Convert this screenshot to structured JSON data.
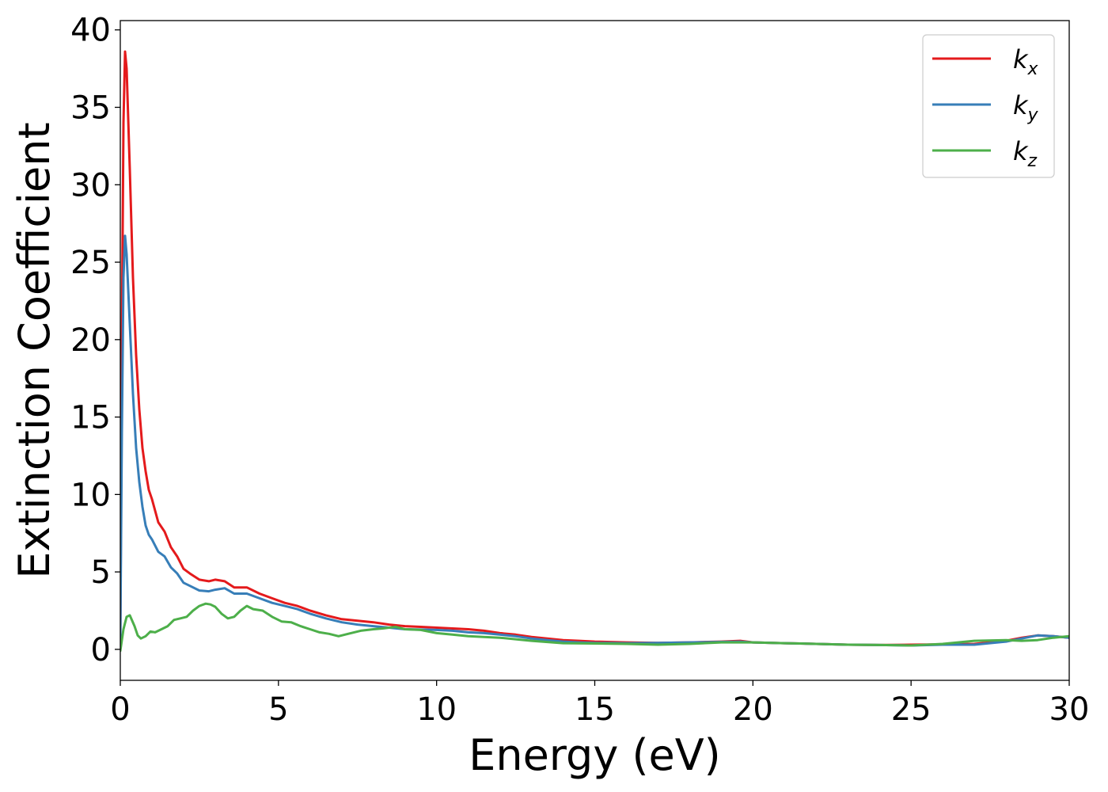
{
  "chart_data": {
    "type": "line",
    "title": "",
    "xlabel": "Energy (eV)",
    "ylabel": "Extinction Coefficient",
    "xlim": [
      0,
      30
    ],
    "ylim": [
      -2,
      40.6
    ],
    "xticks": [
      0,
      5,
      10,
      15,
      20,
      25,
      30
    ],
    "yticks": [
      0,
      5,
      10,
      15,
      20,
      25,
      30,
      35,
      40
    ],
    "grid": false,
    "legend_position": "top-right",
    "series": [
      {
        "name": "kx",
        "name_base": "k",
        "name_sub": "x",
        "color": "#e41a1c",
        "x": [
          0,
          0.05,
          0.1,
          0.15,
          0.2,
          0.3,
          0.4,
          0.5,
          0.6,
          0.7,
          0.8,
          0.9,
          1.0,
          1.2,
          1.4,
          1.6,
          1.8,
          2.0,
          2.2,
          2.5,
          2.8,
          3.0,
          3.3,
          3.6,
          4.0,
          4.4,
          4.8,
          5.2,
          5.6,
          6.0,
          6.5,
          7.0,
          7.5,
          8.0,
          8.5,
          9.0,
          9.5,
          10.0,
          10.5,
          11.0,
          11.5,
          12.0,
          12.5,
          13.0,
          13.5,
          14.0,
          14.5,
          15.0,
          16.0,
          17.0,
          18.0,
          19.0,
          19.6,
          20.0,
          21.0,
          22.0,
          23.0,
          24.0,
          25.0,
          26.0,
          27.0,
          28.0,
          28.5,
          29.0,
          29.5,
          30.0
        ],
        "values": [
          0.5,
          20,
          34,
          38.6,
          37.5,
          31,
          24,
          19,
          15.5,
          13,
          11.5,
          10.3,
          9.7,
          8.2,
          7.6,
          6.6,
          6.0,
          5.2,
          4.9,
          4.5,
          4.4,
          4.5,
          4.4,
          4.0,
          4.0,
          3.6,
          3.3,
          3.0,
          2.8,
          2.5,
          2.2,
          1.95,
          1.85,
          1.75,
          1.6,
          1.5,
          1.45,
          1.4,
          1.35,
          1.3,
          1.2,
          1.05,
          0.95,
          0.8,
          0.7,
          0.6,
          0.55,
          0.5,
          0.45,
          0.42,
          0.45,
          0.5,
          0.55,
          0.45,
          0.4,
          0.35,
          0.3,
          0.28,
          0.3,
          0.32,
          0.35,
          0.55,
          0.75,
          0.9,
          0.85,
          0.75
        ]
      },
      {
        "name": "ky",
        "name_base": "k",
        "name_sub": "y",
        "color": "#377eb8",
        "x": [
          0,
          0.05,
          0.1,
          0.15,
          0.2,
          0.3,
          0.4,
          0.5,
          0.6,
          0.7,
          0.8,
          0.9,
          1.0,
          1.2,
          1.4,
          1.6,
          1.8,
          2.0,
          2.2,
          2.5,
          2.8,
          3.0,
          3.3,
          3.6,
          4.0,
          4.4,
          4.8,
          5.2,
          5.6,
          6.0,
          6.5,
          7.0,
          7.5,
          8.0,
          8.5,
          9.0,
          9.5,
          10.0,
          10.5,
          11.0,
          11.5,
          12.0,
          12.5,
          13.0,
          13.5,
          14.0,
          14.5,
          15.0,
          16.0,
          17.0,
          18.0,
          19.0,
          19.6,
          20.0,
          21.0,
          22.0,
          23.0,
          24.0,
          25.0,
          26.0,
          27.0,
          28.0,
          28.5,
          29.0,
          29.5,
          30.0
        ],
        "values": [
          0.5,
          14,
          24,
          26.7,
          25.5,
          21,
          16.5,
          13,
          10.8,
          9.2,
          8.0,
          7.4,
          7.1,
          6.3,
          6.0,
          5.3,
          4.9,
          4.3,
          4.1,
          3.8,
          3.75,
          3.85,
          3.95,
          3.6,
          3.6,
          3.3,
          3.0,
          2.8,
          2.6,
          2.3,
          2.0,
          1.75,
          1.6,
          1.5,
          1.4,
          1.3,
          1.28,
          1.25,
          1.2,
          1.1,
          1.05,
          0.95,
          0.85,
          0.7,
          0.6,
          0.5,
          0.45,
          0.42,
          0.4,
          0.42,
          0.45,
          0.48,
          0.5,
          0.45,
          0.4,
          0.35,
          0.3,
          0.28,
          0.25,
          0.3,
          0.3,
          0.5,
          0.7,
          0.9,
          0.85,
          0.75
        ]
      },
      {
        "name": "kz",
        "name_base": "k",
        "name_sub": "z",
        "color": "#4daf4a",
        "x": [
          0,
          0.1,
          0.2,
          0.3,
          0.45,
          0.55,
          0.65,
          0.8,
          0.95,
          1.1,
          1.3,
          1.5,
          1.7,
          1.9,
          2.1,
          2.3,
          2.5,
          2.7,
          2.85,
          3.0,
          3.2,
          3.4,
          3.6,
          3.8,
          4.0,
          4.2,
          4.5,
          4.8,
          5.1,
          5.4,
          5.7,
          6.0,
          6.3,
          6.6,
          6.9,
          7.2,
          7.6,
          8.0,
          8.3,
          8.7,
          9.0,
          9.5,
          10.0,
          10.5,
          11.0,
          12.0,
          13.0,
          14.0,
          15.0,
          16.0,
          17.0,
          18.0,
          19.0,
          20.0,
          21.0,
          22.0,
          23.0,
          24.0,
          25.0,
          26.0,
          27.0,
          28.0,
          28.5,
          29.0,
          29.5,
          30.0
        ],
        "values": [
          -0.1,
          1.3,
          2.1,
          2.2,
          1.5,
          0.9,
          0.7,
          0.85,
          1.15,
          1.1,
          1.3,
          1.5,
          1.9,
          2.0,
          2.1,
          2.5,
          2.8,
          2.95,
          2.9,
          2.75,
          2.3,
          2.0,
          2.1,
          2.5,
          2.8,
          2.6,
          2.5,
          2.1,
          1.8,
          1.75,
          1.5,
          1.3,
          1.1,
          1.0,
          0.85,
          1.0,
          1.2,
          1.3,
          1.35,
          1.45,
          1.3,
          1.25,
          1.05,
          0.95,
          0.85,
          0.75,
          0.55,
          0.4,
          0.38,
          0.35,
          0.3,
          0.35,
          0.45,
          0.45,
          0.4,
          0.35,
          0.3,
          0.28,
          0.25,
          0.35,
          0.55,
          0.6,
          0.55,
          0.6,
          0.75,
          0.85
        ]
      }
    ]
  }
}
